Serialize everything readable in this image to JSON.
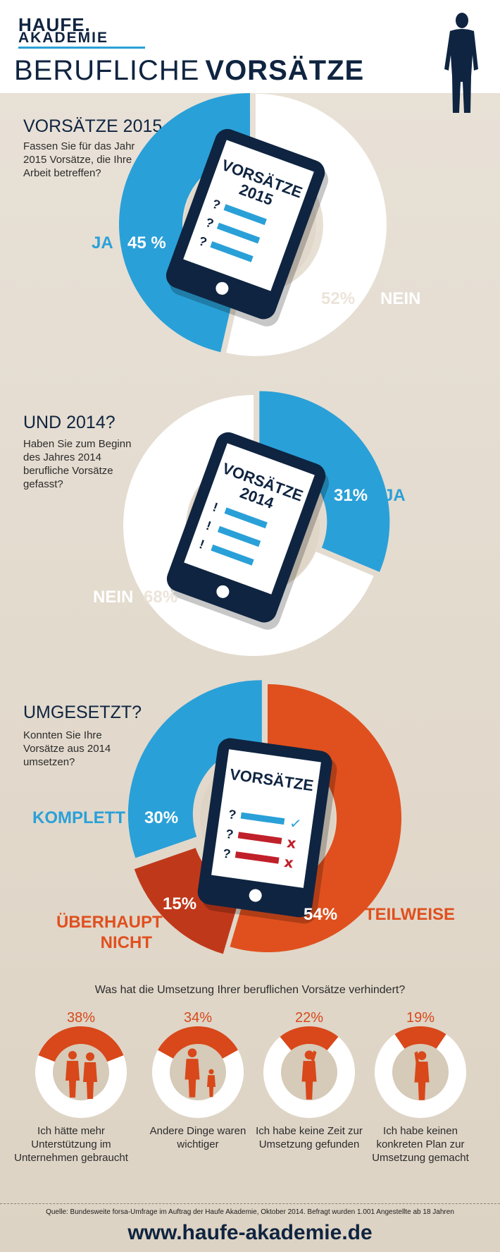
{
  "brand": {
    "line1": "HAUFE.",
    "line2": "AKADEMIE"
  },
  "title": {
    "light": "BERUFLICHE",
    "bold": "VORSÄTZE"
  },
  "colors": {
    "navy": "#0f2440",
    "blue": "#2aa0d8",
    "orange": "#e0501e",
    "dark_orange": "#c0381a",
    "white": "#ffffff"
  },
  "sections": [
    {
      "title": "VORSÄTZE 2015",
      "question": "Fassen Sie für das Jahr 2015 Vorsätze, die Ihre Arbeit betreffen?",
      "tablet_title": "VORSÄTZE 2015"
    },
    {
      "title": "UND 2014?",
      "question": "Haben Sie zum Beginn des Jahres 2014 berufliche Vorsätze gefasst?",
      "tablet_title": "VORSÄTZE 2014"
    },
    {
      "title": "UMGESETZT?",
      "question": "Konnten Sie Ihre Vorsätze aus 2014 umsetzen?",
      "tablet_title": "VORSÄTZE"
    }
  ],
  "chart_data": [
    {
      "type": "pie",
      "categories": [
        "JA",
        "NEIN"
      ],
      "values": [
        45,
        52
      ],
      "labels": [
        "45 %",
        "52%"
      ],
      "colors": [
        "#2aa0d8",
        "#ffffff"
      ]
    },
    {
      "type": "pie",
      "categories": [
        "JA",
        "NEIN"
      ],
      "values": [
        31,
        68
      ],
      "labels": [
        "31%",
        "68%"
      ],
      "colors": [
        "#2aa0d8",
        "#ffffff"
      ]
    },
    {
      "type": "pie",
      "categories": [
        "TEILWEISE",
        "ÜBERHAUPT NICHT",
        "KOMPLETT"
      ],
      "values": [
        54,
        15,
        30
      ],
      "labels": [
        "54%",
        "15%",
        "30%"
      ],
      "colors": [
        "#e0501e",
        "#c0381a",
        "#2aa0d8"
      ]
    },
    {
      "type": "pie",
      "title": "Was hat die Umsetzung Ihrer beruflichen Vorsätze verhindert?",
      "categories": [
        "Ich hätte mehr Unterstützung im Unternehmen gebraucht",
        "Andere Dinge waren wichtiger",
        "Ich habe keine Zeit zur Umsetzung gefunden",
        "Ich habe keinen konkreten Plan zur Umsetzung gemacht"
      ],
      "values": [
        38,
        34,
        22,
        19
      ],
      "labels": [
        "38%",
        "34%",
        "22%",
        "19%"
      ],
      "icons": [
        "two-men-icon",
        "parent-child-icon",
        "man-phone-icon",
        "man-thinking-icon"
      ]
    }
  ],
  "footer": {
    "source": "Quelle: Bundesweite forsa-Umfrage im Auftrag der Haufe Akademie, Oktober 2014. Befragt wurden 1.001 Angestellte ab 18 Jahren",
    "url": "www.haufe-akademie.de"
  }
}
